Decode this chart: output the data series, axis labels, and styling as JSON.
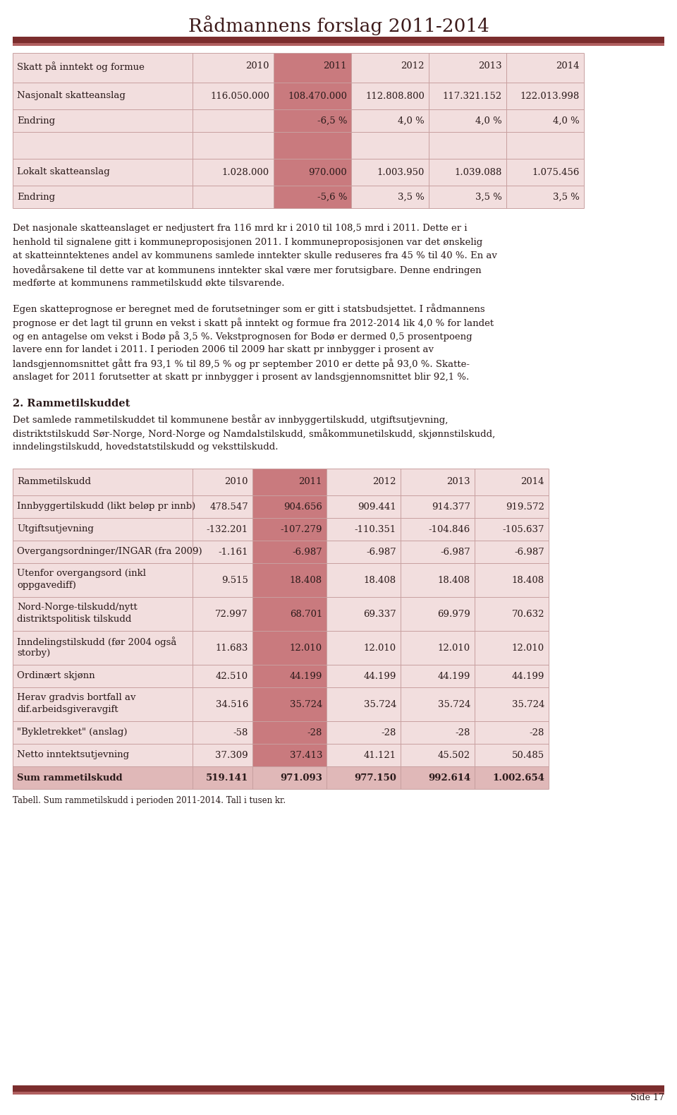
{
  "title": "Rådmannens forslag 2011-2014",
  "title_color": "#3d1a1a",
  "header_bar_color1": "#7b2d2d",
  "header_bar_color2": "#b06060",
  "page_bg": "#ffffff",
  "table1_header": [
    "Skatt på inntekt og formue",
    "2010",
    "2011",
    "2012",
    "2013",
    "2014"
  ],
  "table1_rows": [
    [
      "Nasjonalt skatteanslag",
      "116.050.000",
      "108.470.000",
      "112.808.800",
      "117.321.152",
      "122.013.998"
    ],
    [
      "Endring",
      "",
      "-6,5 %",
      "4,0 %",
      "4,0 %",
      "4,0 %"
    ],
    [
      "",
      "",
      "",
      "",
      "",
      ""
    ],
    [
      "Lokalt skatteanslag",
      "1.028.000",
      "970.000",
      "1.003.950",
      "1.039.088",
      "1.075.456"
    ],
    [
      "Endring",
      "",
      "-5,6 %",
      "3,5 %",
      "3,5 %",
      "3,5 %"
    ]
  ],
  "para1": "Det nasjonale skatteanslaget er nedjustert fra 116 mrd kr i 2010 til 108,5 mrd i 2011. Dette er i\nhenhold til signalene gitt i kommuneproposisjonen 2011. I kommuneproposisjonen var det ønskelig\nat skatteinntektenes andel av kommunens samlede inntekter skulle reduseres fra 45 % til 40 %. En av\nhovedårsakene til dette var at kommunens inntekter skal være mer forutsigbare. Denne endringen\nmedførte at kommunens rammetilskudd økte tilsvarende.",
  "para2": "Egen skatteprognose er beregnet med de forutsetninger som er gitt i statsbudsjettet. I rådmannens\nprognose er det lagt til grunn en vekst i skatt på inntekt og formue fra 2012-2014 lik 4,0 % for landet\nog en antagelse om vekst i Bodø på 3,5 %. Vekstprognosen for Bodø er dermed 0,5 prosentpoeng\nlavere enn for landet i 2011. I perioden 2006 til 2009 har skatt pr innbygger i prosent av\nlandsgjennomsnittet gått fra 93,1 % til 89,5 % og pr september 2010 er dette på 93,0 %. Skatte-\nanslaget for 2011 forutsetter at skatt pr innbygger i prosent av landsgjennomsnittet blir 92,1 %.",
  "section2_header": "2. Rammetilskuddet",
  "section2_para": "Det samlede rammetilskuddet til kommunene består av innbyggertilskudd, utgiftsutjevning,\ndistriktstilskudd Sør-Norge, Nord-Norge og Namdalstilskudd, småkommunetilskudd, skjønnstilskudd,\ninndelingstilskudd, hovedstatstilskudd og veksttilskudd.",
  "table2_header": [
    "Rammetilskudd",
    "2010",
    "2011",
    "2012",
    "2013",
    "2014"
  ],
  "table2_rows": [
    [
      "Innbyggertilskudd (likt beløp pr innb)",
      "478.547",
      "904.656",
      "909.441",
      "914.377",
      "919.572"
    ],
    [
      "Utgiftsutjevning",
      "-132.201",
      "-107.279",
      "-110.351",
      "-104.846",
      "-105.637"
    ],
    [
      "Overgangsordninger/INGAR (fra 2009)",
      "-1.161",
      "-6.987",
      "-6.987",
      "-6.987",
      "-6.987"
    ],
    [
      "Utenfor overgangsord (inkl\noppgavediff)",
      "9.515",
      "18.408",
      "18.408",
      "18.408",
      "18.408"
    ],
    [
      "Nord-Norge-tilskudd/nytt\ndistriktspolitisk tilskudd",
      "72.997",
      "68.701",
      "69.337",
      "69.979",
      "70.632"
    ],
    [
      "Inndelingstilskudd (før 2004 også\nstorby)",
      "11.683",
      "12.010",
      "12.010",
      "12.010",
      "12.010"
    ],
    [
      "Ordinært skjønn",
      "42.510",
      "44.199",
      "44.199",
      "44.199",
      "44.199"
    ],
    [
      "Herav gradvis bortfall av\ndif.arbeidsgiveravgift",
      "34.516",
      "35.724",
      "35.724",
      "35.724",
      "35.724"
    ],
    [
      "\"Bykletrekket\" (anslag)",
      "-58",
      "-28",
      "-28",
      "-28",
      "-28"
    ],
    [
      "Netto inntektsutjevning",
      "37.309",
      "37.413",
      "41.121",
      "45.502",
      "50.485"
    ],
    [
      "Sum rammetilskudd",
      "519.141",
      "971.093",
      "977.150",
      "992.614",
      "1.002.654"
    ]
  ],
  "table_caption": "Tabell. Sum rammetilskudd i perioden 2011-2014. Tall i tusen kr.",
  "footer_text": "Side 17",
  "col_light": "#f2dede",
  "col_highlight": "#c97a7e",
  "sum_row_color": "#e0b8b8",
  "text_dark": "#2a1a1a",
  "line_color": "#c8a0a0"
}
